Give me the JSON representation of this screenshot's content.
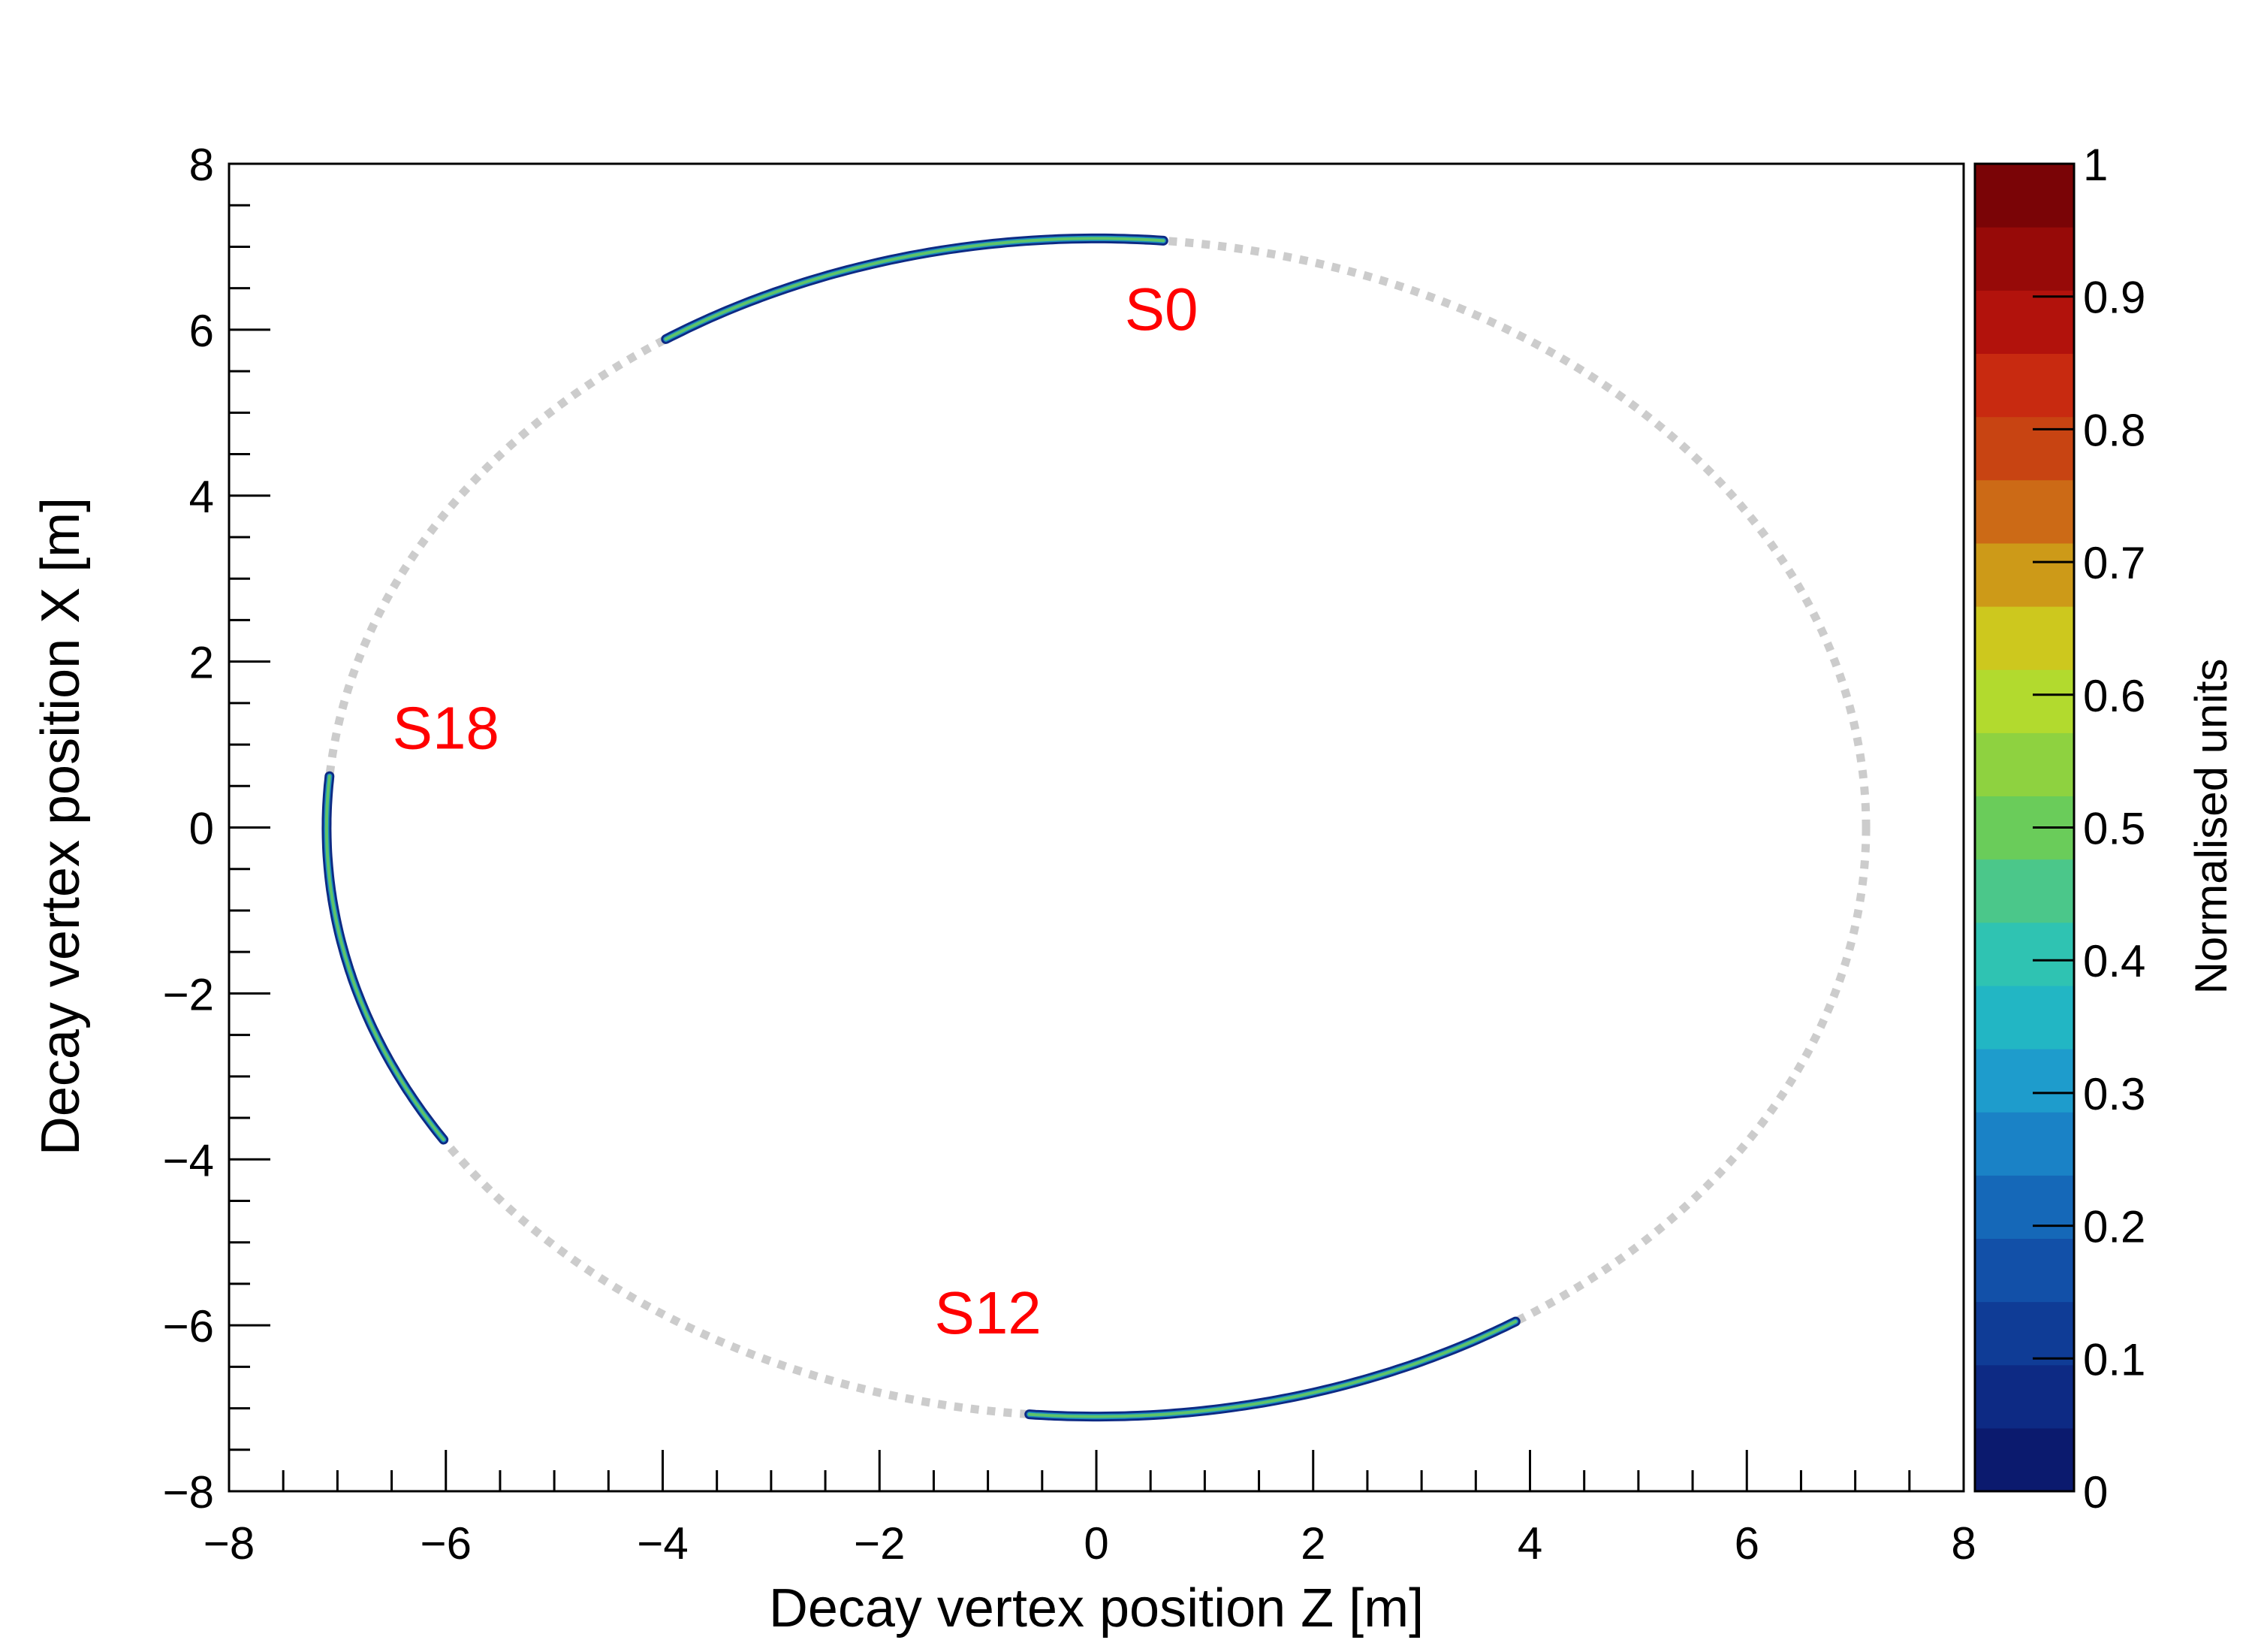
{
  "chart_data": {
    "type": "heatmap",
    "title": "",
    "xlabel": "Decay vertex position Z [m]",
    "ylabel": "Decay vertex position X [m]",
    "xlim": [
      -8,
      8
    ],
    "ylim": [
      -8,
      8
    ],
    "x_ticks": [
      -8,
      -6,
      -4,
      -2,
      0,
      2,
      4,
      6,
      8
    ],
    "y_ticks": [
      -8,
      -6,
      -4,
      -2,
      0,
      2,
      4,
      6,
      8
    ],
    "x_tick_labels": [
      "−8",
      "−6",
      "−4",
      "−2",
      "0",
      "2",
      "4",
      "6",
      "8"
    ],
    "y_tick_labels": [
      "−8",
      "−6",
      "−4",
      "−2",
      "0",
      "2",
      "4",
      "6",
      "8"
    ],
    "grid": false,
    "reference_circle": {
      "shape": "dotted circle",
      "center": [
        0,
        0
      ],
      "radius": 7.1,
      "color": "#cccccc"
    },
    "clusters": [
      {
        "label": "S0",
        "arc_deg": [
          85,
          124
        ],
        "radius": 7.1,
        "label_pos": [
          0.6,
          6.0
        ]
      },
      {
        "label": "S18",
        "arc_deg": [
          175,
          212
        ],
        "radius": 7.1,
        "label_pos": [
          -6.0,
          0.95
        ]
      },
      {
        "label": "S12",
        "arc_deg": [
          265,
          303
        ],
        "radius": 7.1,
        "label_pos": [
          -1.0,
          -6.1
        ]
      }
    ],
    "annotation_color": "#ff0000",
    "colorbar": {
      "title": "Normalised units",
      "range": [
        0,
        1
      ],
      "tick_values": [
        0,
        0.1,
        0.2,
        0.3,
        0.4,
        0.5,
        0.6,
        0.7,
        0.8,
        0.9,
        1
      ],
      "tick_labels": [
        "0",
        "0.1",
        "0.2",
        "0.3",
        "0.4",
        "0.5",
        "0.6",
        "0.7",
        "0.8",
        "0.9",
        "1"
      ],
      "colors": [
        "#0b1a6e",
        "#0d2a84",
        "#0f3c96",
        "#1250a8",
        "#1568b8",
        "#1a82c6",
        "#1e9ccc",
        "#22b6c4",
        "#2fc3b2",
        "#4bc78a",
        "#6acc5a",
        "#8ed240",
        "#b2da2e",
        "#cdc81e",
        "#cd9a18",
        "#cc6a16",
        "#c84412",
        "#c82a10",
        "#b2120c",
        "#970a08",
        "#7a0406"
      ]
    }
  }
}
